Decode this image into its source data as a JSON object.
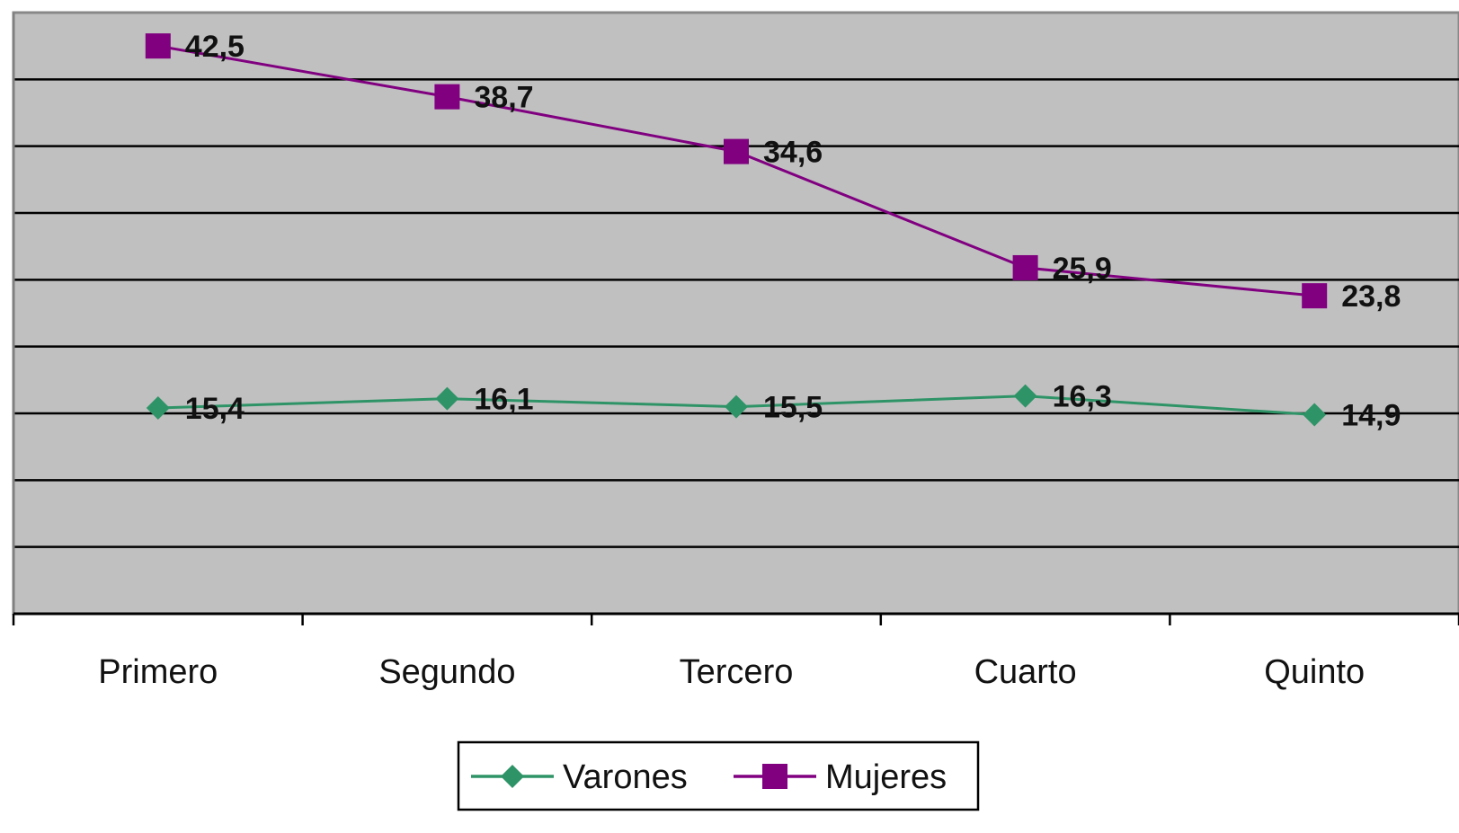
{
  "chart_data": {
    "type": "line",
    "categories": [
      "Primero",
      "Segundo",
      "Tercero",
      "Cuarto",
      "Quinto"
    ],
    "series": [
      {
        "name": "Varones",
        "values": [
          15.4,
          16.1,
          15.5,
          16.3,
          14.9
        ],
        "labels": [
          "15,4",
          "16,1",
          "15,5",
          "16,3",
          "14,9"
        ],
        "color": "#2e9467",
        "marker": "diamond"
      },
      {
        "name": "Mujeres",
        "values": [
          42.5,
          38.7,
          34.6,
          25.9,
          23.8
        ],
        "labels": [
          "42,5",
          "38,7",
          "34,6",
          "25,9",
          "23,8"
        ],
        "color": "#800080",
        "marker": "square"
      }
    ],
    "ylim": [
      0,
      45
    ],
    "y_gridline_step": 5,
    "grid": true,
    "plot_background": "#c0c0c0",
    "legend_position": "bottom"
  }
}
